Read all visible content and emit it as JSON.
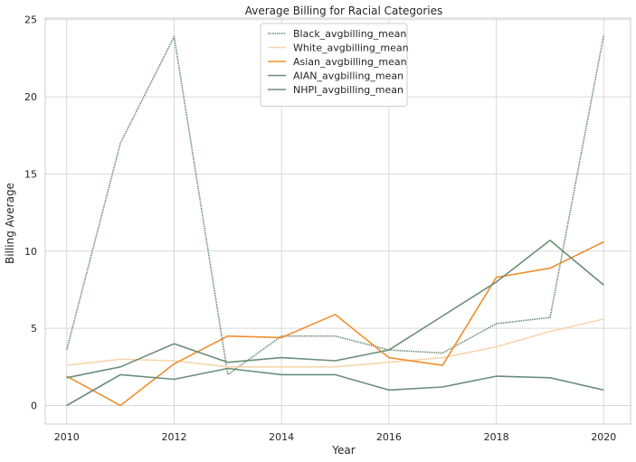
{
  "chart_data": {
    "type": "line",
    "title": "Average Billing for Racial Categories",
    "xlabel": "Year",
    "ylabel": "Billing Average",
    "x": [
      2010,
      2011,
      2012,
      2013,
      2014,
      2015,
      2016,
      2017,
      2018,
      2019,
      2020
    ],
    "xlim": [
      2009.6,
      2020.5
    ],
    "ylim": [
      -1.2,
      25.1
    ],
    "xticks": [
      "2010",
      "2012",
      "2014",
      "2016",
      "2018",
      "2020"
    ],
    "yticks": [
      "0",
      "5",
      "10",
      "15",
      "20",
      "25"
    ],
    "grid": true,
    "legend_position": "top-center",
    "series": [
      {
        "name": "Black_avgbilling_mean",
        "color": "#6b8e78",
        "style": "dotted",
        "values": [
          3.6,
          17.0,
          23.9,
          2.0,
          4.5,
          4.5,
          3.6,
          3.4,
          5.3,
          5.7,
          24.0
        ]
      },
      {
        "name": "White_avgbilling_mean",
        "color": "#f7d6ae",
        "style": "solid",
        "values": [
          2.6,
          3.0,
          2.9,
          2.5,
          2.5,
          2.5,
          2.8,
          3.1,
          3.8,
          4.8,
          5.6
        ]
      },
      {
        "name": "Asian_avgbilling_mean",
        "color": "#ef8f2f",
        "style": "solid",
        "values": [
          1.9,
          0.0,
          2.7,
          4.5,
          4.4,
          5.9,
          3.1,
          2.6,
          8.3,
          8.9,
          10.6
        ]
      },
      {
        "name": "AIAN_avgbilling_mean",
        "color": "#6b8e78",
        "style": "solid",
        "values": [
          1.8,
          2.5,
          4.0,
          2.8,
          3.1,
          2.9,
          3.6,
          5.8,
          8.0,
          10.7,
          7.8
        ]
      },
      {
        "name": "NHPI_avgbilling_mean",
        "color": "#6b8e78",
        "style": "solid",
        "values": [
          0.0,
          2.0,
          1.7,
          2.4,
          2.0,
          2.0,
          1.0,
          1.2,
          1.9,
          1.8,
          1.0
        ]
      }
    ]
  }
}
